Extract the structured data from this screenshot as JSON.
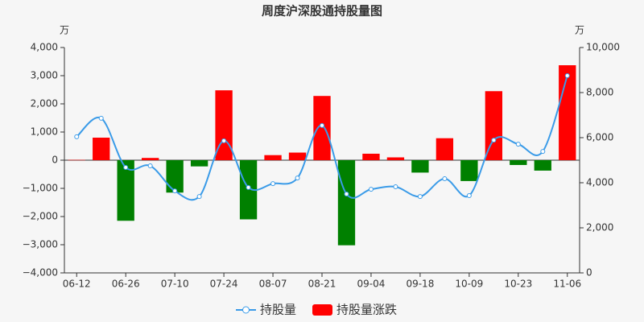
{
  "chart_data": {
    "type": "bar_line",
    "title": "周度沪深股通持股量图",
    "y_unit": "万",
    "y2_unit": "万",
    "categories": [
      "06-12",
      null,
      "06-26",
      null,
      "07-10",
      null,
      "07-24",
      null,
      "08-07",
      null,
      "08-21",
      null,
      "09-04",
      null,
      "09-18",
      null,
      "10-09",
      null,
      "10-23",
      null,
      "11-06"
    ],
    "series": [
      {
        "name": "持股量",
        "type": "line",
        "axis": "y2",
        "color": "#3a9be8",
        "values": [
          6040,
          6860,
          4680,
          4750,
          3640,
          3390,
          5860,
          3790,
          3960,
          4210,
          6540,
          3500,
          3710,
          3820,
          3390,
          4180,
          3430,
          5890,
          5710,
          5390,
          8750
        ]
      },
      {
        "name": "持股量涨跌",
        "type": "bar",
        "color": "#ff0000",
        "negative_color": "#008000",
        "values": [
          10,
          800,
          -2150,
          80,
          -1150,
          -220,
          2480,
          -2100,
          180,
          270,
          2280,
          -3020,
          230,
          100,
          -440,
          780,
          -740,
          2450,
          -170,
          -370,
          3370
        ]
      }
    ],
    "ylim": [
      -4000,
      4000
    ],
    "yticks": [
      {
        "value": -4000,
        "label": "−4,000"
      },
      {
        "value": -3000,
        "label": "−3,000"
      },
      {
        "value": -2000,
        "label": "−2,000"
      },
      {
        "value": -1000,
        "label": "−1,000"
      },
      0,
      {
        "value": 1000,
        "label": "1,000"
      },
      {
        "value": 2000,
        "label": "2,000"
      },
      {
        "value": 3000,
        "label": "3,000"
      },
      {
        "value": 4000,
        "label": "4,000"
      }
    ],
    "y2lim": [
      0,
      10000
    ],
    "y2ticks": [
      0,
      {
        "value": 2000,
        "label": "2,000"
      },
      {
        "value": 4000,
        "label": "4,000"
      },
      {
        "value": 6000,
        "label": "6,000"
      },
      {
        "value": 8000,
        "label": "8,000"
      },
      {
        "value": 10000,
        "label": "10,000"
      }
    ],
    "grid": false,
    "legend": "bottom"
  }
}
